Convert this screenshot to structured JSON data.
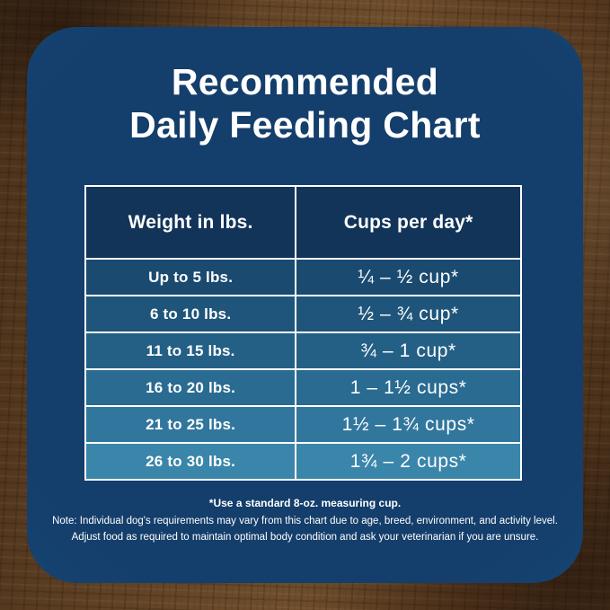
{
  "title": {
    "line1": "Recommended",
    "line2": "Daily Feeding Chart"
  },
  "table": {
    "header": {
      "col1": "Weight in lbs.",
      "col2": "Cups per day*"
    },
    "rows": [
      {
        "weight": "Up to 5 lbs.",
        "cups": "¼ – ½ cup*"
      },
      {
        "weight": "6 to 10 lbs.",
        "cups": "½ – ¾ cup*"
      },
      {
        "weight": "11 to 15 lbs.",
        "cups": "¾ – 1 cup*"
      },
      {
        "weight": "16 to 20 lbs.",
        "cups": "1 – 1½ cups*"
      },
      {
        "weight": "21 to 25 lbs.",
        "cups": "1½ – 1¾ cups*"
      },
      {
        "weight": "26 to 30 lbs.",
        "cups": "1¾ – 2 cups*"
      }
    ]
  },
  "footnotes": {
    "measuring": "*Use a standard 8-oz. measuring cup.",
    "note_line1": "Note: Individual dog's requirements may vary from this chart due to age, breed, environment, and activity level.",
    "note_line2": "Adjust food as required to maintain optimal body condition and ask your veterinarian if you are unsure."
  },
  "colors": {
    "card_center": "#143e6b",
    "card_edge": "#1e5a9c",
    "header_bg": "#123459",
    "row_colors": [
      "#1a4a70",
      "#1f557b",
      "#246086",
      "#296b91",
      "#31769c",
      "#3a85aa"
    ],
    "border": "#ffffff",
    "text": "#ffffff",
    "wood_brown": "#5c3e24"
  },
  "chart_data": {
    "type": "table",
    "title": "Recommended Daily Feeding Chart",
    "columns": [
      "Weight in lbs.",
      "Cups per day*"
    ],
    "rows": [
      [
        "Up to 5 lbs.",
        "¼ – ½ cup*"
      ],
      [
        "6 to 10 lbs.",
        "½ – ¾ cup*"
      ],
      [
        "11 to 15 lbs.",
        "¾ – 1 cup*"
      ],
      [
        "16 to 20 lbs.",
        "1 – 1½ cups*"
      ],
      [
        "21 to 25 lbs.",
        "1½ – 1¾ cups*"
      ],
      [
        "26 to 30 lbs.",
        "1¾ – 2 cups*"
      ]
    ],
    "footnotes": [
      "*Use a standard 8-oz. measuring cup.",
      "Note: Individual dog's requirements may vary from this chart due to age, breed, environment, and activity level. Adjust food as required to maintain optimal body condition and ask your veterinarian if you are unsure."
    ]
  }
}
